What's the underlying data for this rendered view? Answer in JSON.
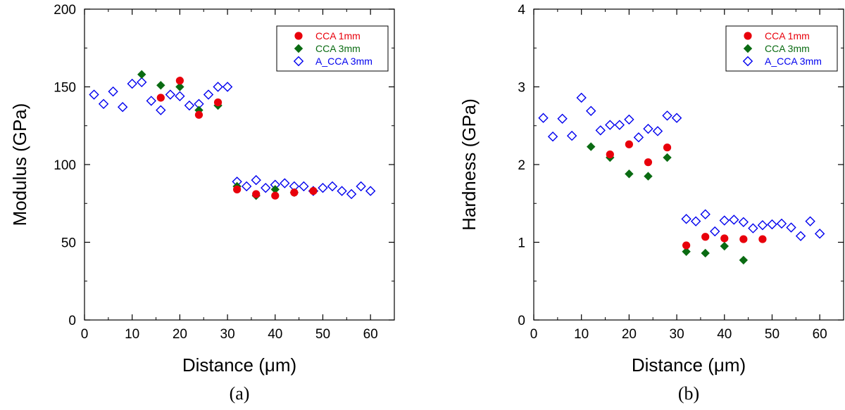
{
  "colors": {
    "cca_1mm": "#e8000b",
    "cca_3mm": "#0a6b12",
    "a_cca_3mm": "#0000ee"
  },
  "chart_data": [
    {
      "type": "scatter",
      "caption": "(a)",
      "xlabel": "Distance (μm)",
      "ylabel": "Modulus (GPa)",
      "xlim": [
        0,
        65
      ],
      "ylim": [
        0,
        200
      ],
      "xticks": [
        0,
        10,
        20,
        30,
        40,
        50,
        60
      ],
      "yticks": [
        0,
        50,
        100,
        150,
        200
      ],
      "legend_position": "top-right",
      "series": [
        {
          "name": "CCA 1mm",
          "marker": "circle",
          "color": "#e8000b",
          "x": [
            16,
            20,
            24,
            28,
            32,
            36,
            40,
            44,
            48
          ],
          "y": [
            143,
            154,
            132,
            140,
            84,
            81,
            80,
            82,
            83
          ]
        },
        {
          "name": "CCA 3mm",
          "marker": "diamond",
          "color": "#0a6b12",
          "x": [
            12,
            16,
            20,
            24,
            28,
            32,
            36,
            40,
            44
          ],
          "y": [
            158,
            151,
            150,
            135,
            138,
            86,
            80,
            84,
            82
          ]
        },
        {
          "name": "A_CCA 3mm",
          "marker": "open-diamond",
          "color": "#0000ee",
          "x": [
            2,
            4,
            6,
            8,
            10,
            12,
            14,
            16,
            18,
            20,
            22,
            24,
            26,
            28,
            30,
            32,
            34,
            36,
            38,
            40,
            42,
            44,
            46,
            48,
            50,
            52,
            54,
            56,
            58,
            60
          ],
          "y": [
            145,
            139,
            147,
            137,
            152,
            153,
            141,
            135,
            145,
            144,
            138,
            139,
            145,
            150,
            150,
            89,
            86,
            90,
            85,
            87,
            88,
            86,
            86,
            83,
            85,
            86,
            83,
            81,
            86,
            83
          ]
        }
      ]
    },
    {
      "type": "scatter",
      "caption": "(b)",
      "xlabel": "Distance (μm)",
      "ylabel": "Hardness (GPa)",
      "xlim": [
        0,
        65
      ],
      "ylim": [
        0,
        4
      ],
      "xticks": [
        0,
        10,
        20,
        30,
        40,
        50,
        60
      ],
      "yticks": [
        0,
        1,
        2,
        3,
        4
      ],
      "legend_position": "top-right",
      "series": [
        {
          "name": "CCA 1mm",
          "marker": "circle",
          "color": "#e8000b",
          "x": [
            16,
            20,
            24,
            28,
            32,
            36,
            40,
            44,
            48
          ],
          "y": [
            2.13,
            2.26,
            2.03,
            2.22,
            0.96,
            1.07,
            1.05,
            1.04,
            1.04
          ]
        },
        {
          "name": "CCA 3mm",
          "marker": "diamond",
          "color": "#0a6b12",
          "x": [
            12,
            16,
            20,
            24,
            28,
            32,
            36,
            40,
            44
          ],
          "y": [
            2.23,
            2.09,
            1.88,
            1.85,
            2.09,
            0.88,
            0.86,
            0.95,
            0.77
          ]
        },
        {
          "name": "A_CCA 3mm",
          "marker": "open-diamond",
          "color": "#0000ee",
          "x": [
            2,
            4,
            6,
            8,
            10,
            12,
            14,
            16,
            18,
            20,
            22,
            24,
            26,
            28,
            30,
            32,
            34,
            36,
            38,
            40,
            42,
            44,
            46,
            48,
            50,
            52,
            54,
            56,
            58,
            60
          ],
          "y": [
            2.6,
            2.36,
            2.59,
            2.37,
            2.86,
            2.69,
            2.44,
            2.51,
            2.51,
            2.58,
            2.35,
            2.46,
            2.43,
            2.63,
            2.6,
            1.3,
            1.27,
            1.36,
            1.14,
            1.28,
            1.29,
            1.26,
            1.18,
            1.22,
            1.23,
            1.24,
            1.19,
            1.08,
            1.27,
            1.11
          ]
        }
      ]
    }
  ]
}
